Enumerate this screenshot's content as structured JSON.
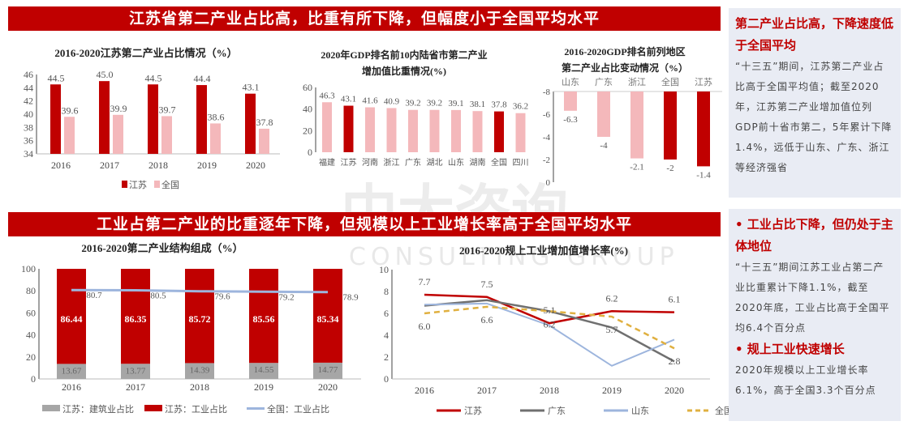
{
  "banners": [
    "江苏省第二产业占比高，比重有所下降，但幅度小于全国平均水平",
    "工业占第二产业的比重逐年下降，但规模以上工业增长率高于全国平均水平"
  ],
  "watermark": {
    "cn": "中大咨询",
    "en": "CONSULTING GROUP"
  },
  "colors": {
    "red": "#c00000",
    "pink": "#f4b8bb",
    "gray": "#a6a6a6",
    "blue": "#9db5dd",
    "gold": "#e0b040",
    "darkgray": "#707070",
    "panel": "#e9ecf4"
  },
  "side": {
    "block1": {
      "heading": "第二产业占比高，下降速度低于全国平均",
      "text": "“十三五”期间，江苏第二产业占比高于全国平均值；截至2020年，江苏第二产业增加值位列GDP前十省市第二，5年累计下降1.4%，远低于山东、广东、浙江等经济强省"
    },
    "block2": {
      "heading1": "• 工业占比下降，但仍处于主体地位",
      "text1": "“十三五”期间江苏工业占第二产业比重累计下降1.1%，截至2020年底，工业占比高于全国平均6.4个百分点",
      "heading2": "• 规上工业快速增长",
      "text2": "2020年规模以上工业增长率6.1%，高于全国3.3个百分点"
    }
  },
  "chart_data": [
    {
      "type": "bar",
      "title": "2016-2020江苏第二产业占比情况（%）",
      "categories": [
        "2016",
        "2017",
        "2018",
        "2019",
        "2020"
      ],
      "ylim": [
        34,
        46
      ],
      "yticks": [
        34,
        36,
        38,
        40,
        42,
        44,
        46
      ],
      "legend_position": "bottom",
      "series": [
        {
          "name": "江苏",
          "values": [
            44.5,
            45.0,
            44.5,
            44.4,
            43.1
          ]
        },
        {
          "name": "全国",
          "values": [
            39.6,
            39.9,
            39.7,
            38.6,
            37.8
          ]
        }
      ]
    },
    {
      "type": "bar",
      "title": [
        "2020年GDP排名前10内陆省市第二产业",
        "增加值比重情况(%)"
      ],
      "categories": [
        "福建",
        "江苏",
        "河南",
        "浙江",
        "广东",
        "湖北",
        "山东",
        "湖南",
        "全国",
        "四川"
      ],
      "values": [
        46.3,
        43.1,
        41.6,
        40.9,
        39.2,
        39.2,
        39.1,
        38.1,
        37.8,
        36.2
      ],
      "highlight": [
        "江苏",
        "全国"
      ],
      "ylim": [
        0,
        60
      ],
      "yticks": [
        0,
        20,
        40,
        60
      ]
    },
    {
      "type": "bar",
      "title": [
        "2016-2020GDP排名前列地区",
        "第二产业占比变动情况（%）"
      ],
      "categories": [
        "山东",
        "广东",
        "浙江",
        "全国",
        "江苏"
      ],
      "values": [
        -6.3,
        -4,
        -2.1,
        -2,
        -1.4
      ],
      "highlight": [
        "全国",
        "江苏"
      ],
      "ylim": [
        -8,
        0
      ],
      "yticks": [
        0,
        -2,
        -4,
        -6,
        -8
      ]
    },
    {
      "type": "bar",
      "stacked": true,
      "title": "2016-2020第二产业结构组成（%）",
      "categories": [
        "2016",
        "2017",
        "2018",
        "2019",
        "2020"
      ],
      "ylim": [
        0,
        100
      ],
      "yticks": [
        0,
        20,
        40,
        60,
        80,
        100
      ],
      "legend_position": "bottom",
      "series": [
        {
          "name": "江苏：建筑业占比",
          "values": [
            13.67,
            13.77,
            14.39,
            14.55,
            14.77
          ]
        },
        {
          "name": "江苏：工业占比",
          "values": [
            86.44,
            86.35,
            85.72,
            85.56,
            85.34
          ]
        },
        {
          "name": "全国：工业占比",
          "type": "line",
          "values": [
            80.7,
            80.5,
            79.6,
            79.2,
            78.9
          ]
        }
      ]
    },
    {
      "type": "line",
      "title": "2016-2020规上工业增加值增长率(%)",
      "categories": [
        "2016",
        "2017",
        "2018",
        "2019",
        "2020"
      ],
      "ylim": [
        0,
        10
      ],
      "yticks": [
        0,
        2,
        4,
        6,
        8,
        10
      ],
      "legend_position": "bottom",
      "series": [
        {
          "name": "江苏",
          "values": [
            7.7,
            7.5,
            5.1,
            6.2,
            6.1
          ]
        },
        {
          "name": "广东",
          "values": [
            6.7,
            7.2,
            6.2,
            4.7,
            1.6
          ]
        },
        {
          "name": "山东",
          "values": [
            6.8,
            6.9,
            4.9,
            1.2,
            3.6
          ]
        },
        {
          "name": "全国",
          "values": [
            6.0,
            6.6,
            6.2,
            5.7,
            2.8
          ]
        }
      ],
      "labels": [
        {
          "series": "江苏",
          "index": 0,
          "text": "7.7"
        },
        {
          "series": "全国",
          "index": 0,
          "text": "6.0"
        },
        {
          "series": "江苏",
          "index": 1,
          "text": "7.5"
        },
        {
          "series": "全国",
          "index": 1,
          "text": "6.6"
        },
        {
          "series": "江苏",
          "index": 2,
          "text": "5.1"
        },
        {
          "series": "全国",
          "index": 2,
          "text": "6.2"
        },
        {
          "series": "江苏",
          "index": 3,
          "text": "6.2"
        },
        {
          "series": "全国",
          "index": 3,
          "text": "5.7"
        },
        {
          "series": "江苏",
          "index": 4,
          "text": "6.1"
        },
        {
          "series": "全国",
          "index": 4,
          "text": "2.8"
        }
      ]
    }
  ]
}
